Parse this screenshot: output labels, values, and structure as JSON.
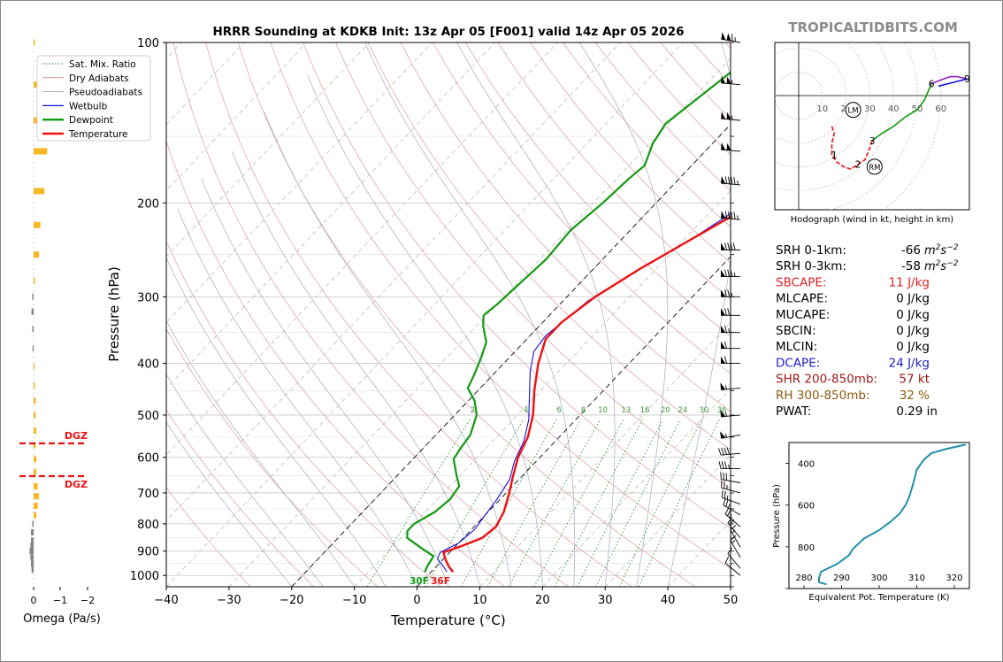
{
  "title": "HRRR Sounding at KDKB Init: 13z Apr 05 [F001] valid 14z Apr 05 2026",
  "watermark": "TROPICALTIDBITS.COM",
  "legend": {
    "items": [
      {
        "label": "Sat. Mix. Ratio",
        "color": "#1a8a1a",
        "style": "dotted"
      },
      {
        "label": "Dry Adiabats",
        "color": "#d08080",
        "style": "solid-thin"
      },
      {
        "label": "Pseudoadiabats",
        "color": "#9a9aa8",
        "style": "solid-thin"
      },
      {
        "label": "Wetbulb",
        "color": "#1010e0",
        "style": "solid"
      },
      {
        "label": "Dewpoint",
        "color": "#109a10",
        "style": "thick"
      },
      {
        "label": "Temperature",
        "color": "#ee1010",
        "style": "thick"
      }
    ]
  },
  "omega_panel": {
    "xlabel": "Omega (Pa/s)",
    "ticks": [
      "0",
      "−1",
      "−2"
    ],
    "dgz_label": "DGZ",
    "bars": [
      {
        "p": 100,
        "v": -0.05
      },
      {
        "p": 120,
        "v": -0.2
      },
      {
        "p": 140,
        "v": -0.45
      },
      {
        "p": 160,
        "v": -0.5
      },
      {
        "p": 190,
        "v": -0.4
      },
      {
        "p": 220,
        "v": -0.25
      },
      {
        "p": 250,
        "v": -0.2
      },
      {
        "p": 280,
        "v": -0.05
      },
      {
        "p": 300,
        "v": 0.05
      },
      {
        "p": 320,
        "v": 0.08
      },
      {
        "p": 345,
        "v": 0.05
      },
      {
        "p": 375,
        "v": 0.03
      },
      {
        "p": 405,
        "v": -0.02
      },
      {
        "p": 440,
        "v": -0.05
      },
      {
        "p": 470,
        "v": -0.08
      },
      {
        "p": 500,
        "v": -0.08
      },
      {
        "p": 535,
        "v": -0.1
      },
      {
        "p": 570,
        "v": -0.08
      },
      {
        "p": 605,
        "v": -0.1
      },
      {
        "p": 640,
        "v": -0.1
      },
      {
        "p": 680,
        "v": -0.15
      },
      {
        "p": 710,
        "v": -0.2
      },
      {
        "p": 740,
        "v": -0.15
      },
      {
        "p": 770,
        "v": -0.1
      },
      {
        "p": 800,
        "v": 0.05
      },
      {
        "p": 830,
        "v": 0.1
      },
      {
        "p": 860,
        "v": 0.1
      },
      {
        "p": 880,
        "v": 0.12
      },
      {
        "p": 900,
        "v": 0.15
      },
      {
        "p": 925,
        "v": 0.12
      },
      {
        "p": 950,
        "v": 0.1
      },
      {
        "p": 975,
        "v": 0.08
      }
    ]
  },
  "chart_data": [
    {
      "type": "line",
      "title": "HRRR Sounding at KDKB Init: 13z Apr 05 [F001] valid 14z Apr 05 2026",
      "xlabel": "Temperature (°C)",
      "ylabel": "Pressure (hPa)",
      "xlim": [
        -40,
        50
      ],
      "ylim": [
        1050,
        100
      ],
      "yscale": "log",
      "x_ticks": [
        -40,
        -30,
        -20,
        -10,
        0,
        10,
        20,
        30,
        40,
        50
      ],
      "x_tick_labels": [
        "−40",
        "−30",
        "−20",
        "−10",
        "0",
        "10",
        "20",
        "30",
        "40",
        "50"
      ],
      "y_ticks": [
        100,
        200,
        300,
        400,
        500,
        600,
        700,
        800,
        900,
        1000
      ],
      "mixing_ratio_labels": [
        "2",
        "4",
        "6",
        "8",
        "10",
        "13",
        "16",
        "20",
        "24",
        "30",
        "36"
      ],
      "surface_labels": {
        "dewpoint": "30F",
        "temperature": "36F"
      },
      "series": [
        {
          "name": "Temperature",
          "color": "#ee1010",
          "points": [
            [
              3.5,
              985
            ],
            [
              2,
              962
            ],
            [
              0.5,
              935
            ],
            [
              -1,
              905
            ],
            [
              1,
              880
            ],
            [
              3,
              850
            ],
            [
              3.5,
              810
            ],
            [
              2.5,
              760
            ],
            [
              0.5,
              700
            ],
            [
              -1.5,
              650
            ],
            [
              -3.5,
              600
            ],
            [
              -5,
              550
            ],
            [
              -7.5,
              500
            ],
            [
              -11,
              450
            ],
            [
              -14.5,
              400
            ],
            [
              -17,
              360
            ],
            [
              -17,
              335
            ],
            [
              -15.5,
              300
            ],
            [
              -12.5,
              265
            ],
            [
              -9,
              235
            ],
            [
              -5,
              205
            ],
            [
              -3.5,
              180
            ],
            [
              -5,
              160
            ],
            [
              -6.5,
              138
            ],
            [
              -6,
              120
            ],
            [
              -5,
              110
            ],
            [
              -4,
              100
            ]
          ]
        },
        {
          "name": "Dewpoint",
          "color": "#109a10",
          "points": [
            [
              -1,
              985
            ],
            [
              -1.5,
              960
            ],
            [
              -2,
              920
            ],
            [
              -5,
              890
            ],
            [
              -9,
              850
            ],
            [
              -10,
              825
            ],
            [
              -10,
              800
            ],
            [
              -8.5,
              760
            ],
            [
              -8,
              720
            ],
            [
              -8.5,
              680
            ],
            [
              -10.5,
              650
            ],
            [
              -13.5,
              605
            ],
            [
              -14,
              580
            ],
            [
              -14.5,
              545
            ],
            [
              -16.5,
              500
            ],
            [
              -19,
              470
            ],
            [
              -22,
              445
            ],
            [
              -23,
              420
            ],
            [
              -24.5,
              390
            ],
            [
              -26,
              365
            ],
            [
              -29,
              340
            ],
            [
              -30.5,
              325
            ],
            [
              -30,
              310
            ],
            [
              -29.5,
              280
            ],
            [
              -29,
              255
            ],
            [
              -29.5,
              225
            ],
            [
              -28.5,
              200
            ],
            [
              -28,
              180
            ],
            [
              -27.5,
              170
            ],
            [
              -29.5,
              155
            ],
            [
              -30.5,
              142
            ],
            [
              -29,
              125
            ],
            [
              -27.5,
              110
            ],
            [
              -26,
              100
            ]
          ]
        },
        {
          "name": "Wetbulb",
          "color": "#1010e0",
          "points": [
            [
              2.5,
              985
            ],
            [
              1,
              960
            ],
            [
              -1,
              930
            ],
            [
              -1.5,
              905
            ],
            [
              0,
              870
            ],
            [
              0.5,
              820
            ],
            [
              0,
              770
            ],
            [
              -0.5,
              720
            ],
            [
              -1.5,
              660
            ],
            [
              -3.5,
              610
            ],
            [
              -5,
              560
            ],
            [
              -7.5,
              510
            ],
            [
              -11,
              460
            ],
            [
              -14.5,
              415
            ],
            [
              -17,
              380
            ],
            [
              -17.5,
              355
            ],
            [
              -16,
              305
            ],
            [
              -13,
              270
            ],
            [
              -9,
              235
            ],
            [
              -6,
              205
            ],
            [
              -4.5,
              182
            ],
            [
              -5.5,
              160
            ],
            [
              -7,
              138
            ],
            [
              -6.5,
              120
            ],
            [
              -5,
              108
            ],
            [
              -4,
              100
            ]
          ]
        }
      ]
    },
    {
      "type": "table",
      "title": "Sounding indices",
      "rows": [
        {
          "label": "SRH 0-1km:",
          "value": "-66",
          "unit": "m2s-2",
          "color": "#000000"
        },
        {
          "label": "SRH 0-3km:",
          "value": "-58",
          "unit": "m2s-2",
          "color": "#000000"
        },
        {
          "label": "SBCAPE:",
          "value": "11 J/kg",
          "color": "#e02020"
        },
        {
          "label": "MLCAPE:",
          "value": "0 J/kg",
          "color": "#000000"
        },
        {
          "label": "MUCAPE:",
          "value": "0 J/kg",
          "color": "#000000"
        },
        {
          "label": "SBCIN:",
          "value": "0 J/kg",
          "color": "#000000"
        },
        {
          "label": "MLCIN:",
          "value": "0 J/kg",
          "color": "#000000"
        },
        {
          "label": "DCAPE:",
          "value": "24 J/kg",
          "color": "#2020d0"
        },
        {
          "label": "SHR 200-850mb:",
          "value": "57 kt",
          "color": "#a01818"
        },
        {
          "label": "RH 300-850mb:",
          "value": "32 %",
          "color": "#8a5a10"
        },
        {
          "label": "PWAT:",
          "value": "0.29 in",
          "color": "#000000"
        }
      ]
    },
    {
      "type": "line",
      "title": "Hodograph (wind in kt, height in km)",
      "ring_labels": [
        "10",
        "20",
        "30",
        "40",
        "50",
        "60"
      ],
      "height_labels": [
        {
          "label": "1",
          "u": 15,
          "v": -25
        },
        {
          "label": "2",
          "u": 25,
          "v": -29
        },
        {
          "label": "3",
          "u": 31,
          "v": -19
        },
        {
          "label": "6",
          "u": 56,
          "v": 5
        },
        {
          "label": "9",
          "u": 71,
          "v": 7
        }
      ],
      "motion_markers": [
        {
          "label": "LM",
          "u": 23,
          "v": -6
        },
        {
          "label": "RM",
          "u": 32,
          "v": -30
        }
      ],
      "segments": [
        {
          "color": "#ee1010",
          "points": [
            [
              14,
              -13
            ],
            [
              15,
              -16
            ],
            [
              14,
              -20
            ],
            [
              14,
              -25
            ],
            [
              16,
              -28
            ],
            [
              19,
              -30
            ],
            [
              22,
              -31
            ],
            [
              25,
              -29
            ],
            [
              28,
              -27
            ],
            [
              30,
              -22
            ],
            [
              31,
              -19
            ]
          ]
        },
        {
          "color": "#109a10",
          "points": [
            [
              31,
              -19
            ],
            [
              35,
              -16
            ],
            [
              40,
              -13
            ],
            [
              45,
              -9
            ],
            [
              50,
              -6
            ],
            [
              53,
              -2
            ],
            [
              56,
              5
            ]
          ]
        },
        {
          "color": "#9020c0",
          "points": [
            [
              56,
              5
            ],
            [
              61,
              7
            ],
            [
              64,
              8
            ],
            [
              67,
              8
            ],
            [
              71,
              7
            ]
          ]
        },
        {
          "color": "#1010e0",
          "points": [
            [
              59,
              4
            ],
            [
              63,
              5
            ],
            [
              67,
              6
            ],
            [
              71,
              7
            ]
          ]
        }
      ]
    },
    {
      "type": "line",
      "title": "Equivalent Pot. Temperature",
      "xlabel": "Equivalent Pot. Temperature (K)",
      "ylabel": "Pressure (hPa)",
      "xlim": [
        276,
        324
      ],
      "ylim": [
        1000,
        300
      ],
      "x_ticks": [
        280,
        290,
        300,
        310,
        320
      ],
      "y_ticks": [
        400,
        600,
        800,
        1000
      ],
      "y_tick_labels": [
        "400",
        "600",
        "800",
        ""
      ],
      "series": [
        {
          "name": "Theta-E",
          "color": "#2090a8",
          "points": [
            [
              286,
              980
            ],
            [
              284,
              970
            ],
            [
              284,
              950
            ],
            [
              284.5,
              920
            ],
            [
              289,
              880
            ],
            [
              292,
              840
            ],
            [
              293,
              810
            ],
            [
              296,
              760
            ],
            [
              300,
              720
            ],
            [
              303,
              680
            ],
            [
              305.5,
              640
            ],
            [
              307,
              600
            ],
            [
              308,
              560
            ],
            [
              309,
              500
            ],
            [
              310,
              430
            ],
            [
              312,
              380
            ],
            [
              314,
              350
            ],
            [
              318,
              330
            ],
            [
              323,
              310
            ]
          ]
        }
      ]
    }
  ],
  "wind_barbs": {
    "units": "kt",
    "barbs": [
      {
        "p": 100,
        "dir": 280,
        "spd": 115
      },
      {
        "p": 120,
        "dir": 275,
        "spd": 105
      },
      {
        "p": 140,
        "dir": 275,
        "spd": 105
      },
      {
        "p": 160,
        "dir": 275,
        "spd": 100
      },
      {
        "p": 185,
        "dir": 275,
        "spd": 95
      },
      {
        "p": 215,
        "dir": 275,
        "spd": 95
      },
      {
        "p": 245,
        "dir": 270,
        "spd": 90
      },
      {
        "p": 275,
        "dir": 270,
        "spd": 85
      },
      {
        "p": 300,
        "dir": 270,
        "spd": 75
      },
      {
        "p": 325,
        "dir": 270,
        "spd": 70
      },
      {
        "p": 350,
        "dir": 270,
        "spd": 65
      },
      {
        "p": 375,
        "dir": 270,
        "spd": 60
      },
      {
        "p": 400,
        "dir": 270,
        "spd": 60
      },
      {
        "p": 445,
        "dir": 265,
        "spd": 55
      },
      {
        "p": 500,
        "dir": 265,
        "spd": 55
      },
      {
        "p": 545,
        "dir": 260,
        "spd": 55
      },
      {
        "p": 590,
        "dir": 265,
        "spd": 40
      },
      {
        "p": 630,
        "dir": 270,
        "spd": 35
      },
      {
        "p": 670,
        "dir": 280,
        "spd": 30
      },
      {
        "p": 700,
        "dir": 285,
        "spd": 25
      },
      {
        "p": 735,
        "dir": 290,
        "spd": 25
      },
      {
        "p": 770,
        "dir": 300,
        "spd": 25
      },
      {
        "p": 810,
        "dir": 310,
        "spd": 25
      },
      {
        "p": 850,
        "dir": 320,
        "spd": 20
      },
      {
        "p": 885,
        "dir": 330,
        "spd": 15
      },
      {
        "p": 925,
        "dir": 330,
        "spd": 15
      },
      {
        "p": 970,
        "dir": 320,
        "spd": 10
      },
      {
        "p": 1000,
        "dir": 310,
        "spd": 10
      }
    ]
  }
}
